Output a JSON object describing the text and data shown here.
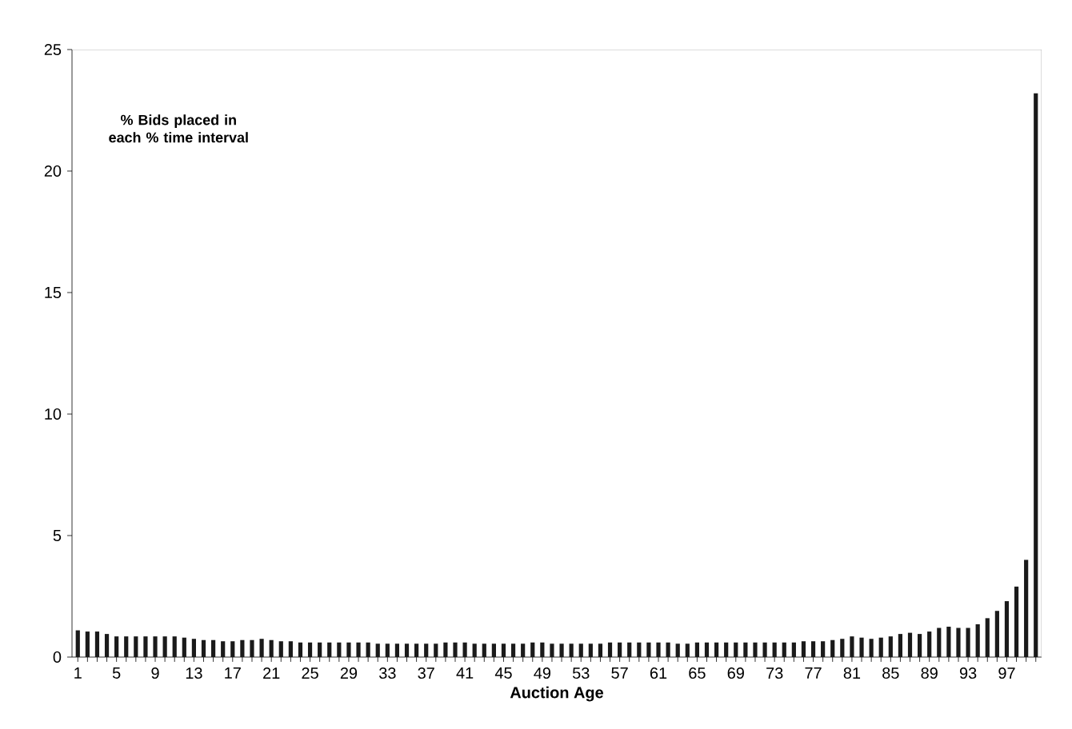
{
  "chart_data": {
    "type": "bar",
    "title": "% Bids placed in each % time interval",
    "xlabel": "Auction Age",
    "categories": [
      "1",
      null,
      null,
      null,
      "5",
      null,
      null,
      null,
      "9",
      null,
      null,
      null,
      "13",
      null,
      null,
      null,
      "17",
      null,
      null,
      null,
      "21",
      null,
      null,
      null,
      "25",
      null,
      null,
      null,
      "29",
      null,
      null,
      null,
      "33",
      null,
      null,
      null,
      "37",
      null,
      null,
      null,
      "41",
      null,
      null,
      null,
      "45",
      null,
      null,
      null,
      "49",
      null,
      null,
      null,
      "53",
      null,
      null,
      null,
      "57",
      null,
      null,
      null,
      "61",
      null,
      null,
      null,
      "65",
      null,
      null,
      null,
      "69",
      null,
      null,
      null,
      "73",
      null,
      null,
      null,
      "77",
      null,
      null,
      null,
      "81",
      null,
      null,
      null,
      "85",
      null,
      null,
      null,
      "89",
      null,
      null,
      null,
      "93",
      null,
      null,
      null,
      "97",
      null,
      null,
      null
    ],
    "values": [
      1.1,
      1.05,
      1.05,
      0.95,
      0.85,
      0.85,
      0.85,
      0.85,
      0.85,
      0.85,
      0.85,
      0.8,
      0.75,
      0.7,
      0.7,
      0.65,
      0.65,
      0.7,
      0.7,
      0.75,
      0.7,
      0.65,
      0.65,
      0.6,
      0.6,
      0.6,
      0.6,
      0.6,
      0.6,
      0.6,
      0.6,
      0.55,
      0.55,
      0.55,
      0.55,
      0.55,
      0.55,
      0.55,
      0.6,
      0.6,
      0.6,
      0.55,
      0.55,
      0.55,
      0.55,
      0.55,
      0.55,
      0.6,
      0.6,
      0.55,
      0.55,
      0.55,
      0.55,
      0.55,
      0.55,
      0.6,
      0.6,
      0.6,
      0.6,
      0.6,
      0.6,
      0.6,
      0.55,
      0.55,
      0.6,
      0.6,
      0.6,
      0.6,
      0.6,
      0.6,
      0.6,
      0.6,
      0.6,
      0.6,
      0.6,
      0.65,
      0.65,
      0.65,
      0.7,
      0.75,
      0.85,
      0.8,
      0.75,
      0.8,
      0.85,
      0.95,
      1.0,
      0.95,
      1.05,
      1.2,
      1.25,
      1.2,
      1.2,
      1.35,
      1.6,
      1.9,
      2.3,
      2.9,
      4.0,
      23.2
    ],
    "color": "#1a1a1a",
    "ylim": [
      0,
      25
    ],
    "yticks": [
      0,
      5,
      10,
      15,
      20,
      25
    ],
    "grid": false
  }
}
